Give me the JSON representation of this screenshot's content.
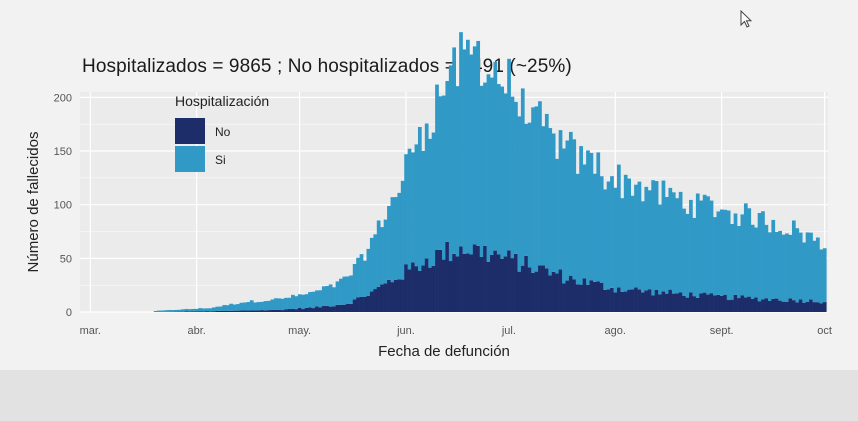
{
  "colors": {
    "no": "#1d2d69",
    "si": "#3199c6",
    "grid": "#ffffff",
    "panel": "#ebebeb"
  },
  "chart_data": {
    "type": "bar",
    "stacked": true,
    "title": "Hospitalizados = 9865 ; No hospitalizados = 3491   (~25%)",
    "xlabel": "Fecha de defunción",
    "ylabel": "Número de fallecidos",
    "ylim": [
      0,
      205
    ],
    "yticks": [
      0,
      50,
      100,
      150,
      200
    ],
    "xrange": [
      "2020-02-27",
      "2020-10-02"
    ],
    "xticks": [
      {
        "date": "2020-03-01",
        "label": "mar."
      },
      {
        "date": "2020-04-01",
        "label": "abr."
      },
      {
        "date": "2020-05-01",
        "label": "may."
      },
      {
        "date": "2020-06-01",
        "label": "jun."
      },
      {
        "date": "2020-07-01",
        "label": "jul."
      },
      {
        "date": "2020-08-01",
        "label": "ago."
      },
      {
        "date": "2020-09-01",
        "label": "sept."
      },
      {
        "date": "2020-10-01",
        "label": "oct"
      }
    ],
    "legend": {
      "title": "Hospitalización",
      "position": "top-left",
      "entries": [
        {
          "label": "No",
          "color": "#1d2d69"
        },
        {
          "label": "Si",
          "color": "#3199c6"
        }
      ]
    },
    "series": [
      {
        "name": "No",
        "color": "#1d2d69",
        "points": [
          [
            "2020-03-20",
            0
          ],
          [
            "2020-04-10",
            1
          ],
          [
            "2020-04-25",
            2
          ],
          [
            "2020-05-05",
            4
          ],
          [
            "2020-05-15",
            8
          ],
          [
            "2020-05-22",
            18
          ],
          [
            "2020-05-28",
            30
          ],
          [
            "2020-06-05",
            45
          ],
          [
            "2020-06-12",
            55
          ],
          [
            "2020-06-18",
            60
          ],
          [
            "2020-06-25",
            55
          ],
          [
            "2020-07-02",
            48
          ],
          [
            "2020-07-10",
            40
          ],
          [
            "2020-07-20",
            30
          ],
          [
            "2020-08-01",
            22
          ],
          [
            "2020-08-15",
            18
          ],
          [
            "2020-09-01",
            14
          ],
          [
            "2020-09-15",
            12
          ],
          [
            "2020-10-01",
            10
          ]
        ]
      },
      {
        "name": "Si",
        "color": "#3199c6",
        "points": [
          [
            "2020-03-20",
            1
          ],
          [
            "2020-03-28",
            2
          ],
          [
            "2020-04-05",
            3
          ],
          [
            "2020-04-15",
            8
          ],
          [
            "2020-04-25",
            10
          ],
          [
            "2020-05-05",
            14
          ],
          [
            "2020-05-12",
            20
          ],
          [
            "2020-05-18",
            32
          ],
          [
            "2020-05-24",
            55
          ],
          [
            "2020-05-30",
            85
          ],
          [
            "2020-06-05",
            120
          ],
          [
            "2020-06-10",
            145
          ],
          [
            "2020-06-15",
            168
          ],
          [
            "2020-06-20",
            185
          ],
          [
            "2020-06-25",
            175
          ],
          [
            "2020-07-01",
            158
          ],
          [
            "2020-07-07",
            140
          ],
          [
            "2020-07-15",
            122
          ],
          [
            "2020-07-25",
            112
          ],
          [
            "2020-08-01",
            103
          ],
          [
            "2020-08-10",
            95
          ],
          [
            "2020-08-20",
            88
          ],
          [
            "2020-08-30",
            82
          ],
          [
            "2020-09-05",
            78
          ],
          [
            "2020-09-15",
            73
          ],
          [
            "2020-09-25",
            63
          ],
          [
            "2020-10-01",
            52
          ]
        ]
      }
    ]
  }
}
